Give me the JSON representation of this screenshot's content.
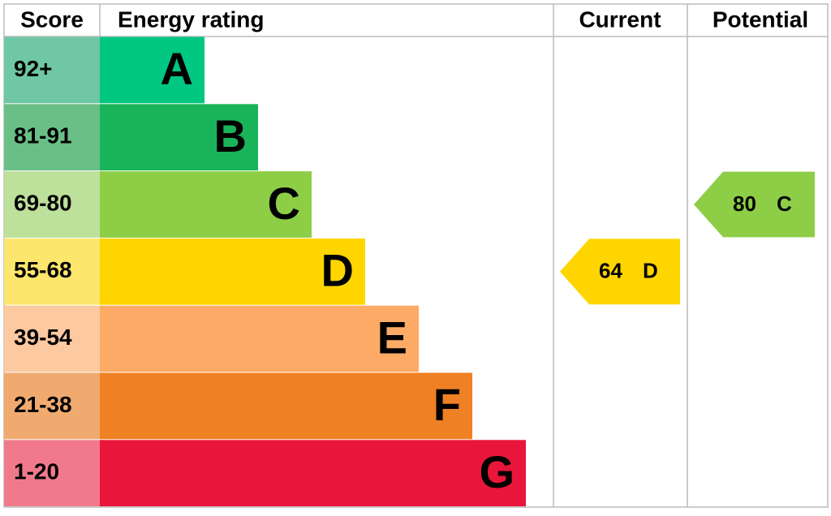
{
  "headers": {
    "score": "Score",
    "rating": "Energy rating",
    "current": "Current",
    "potential": "Potential"
  },
  "bands": [
    {
      "score": "92+",
      "letter": "A",
      "color": "#00c781",
      "light": "#6fc7a5"
    },
    {
      "score": "81-91",
      "letter": "B",
      "color": "#19b459",
      "light": "#6abf86"
    },
    {
      "score": "69-80",
      "letter": "C",
      "color": "#8dce46",
      "light": "#bde09a"
    },
    {
      "score": "55-68",
      "letter": "D",
      "color": "#ffd500",
      "light": "#fde66e"
    },
    {
      "score": "39-54",
      "letter": "E",
      "color": "#fcaa65",
      "light": "#fcc9a0"
    },
    {
      "score": "21-38",
      "letter": "F",
      "color": "#ef8023",
      "light": "#f0aa70"
    },
    {
      "score": "1-20",
      "letter": "G",
      "color": "#e9153b",
      "light": "#f07a8c"
    }
  ],
  "current": {
    "value": "64",
    "letter": "D"
  },
  "potential": {
    "value": "80",
    "letter": "C"
  }
}
